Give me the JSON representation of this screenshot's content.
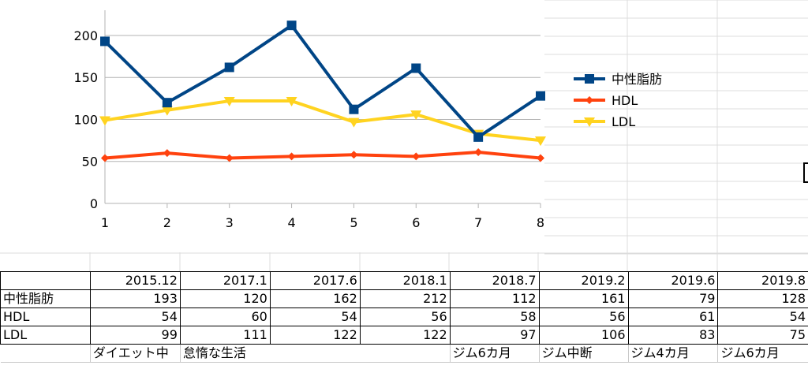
{
  "chart_data": {
    "type": "line",
    "x": [
      1,
      2,
      3,
      4,
      5,
      6,
      7,
      8
    ],
    "ylim": [
      0,
      230
    ],
    "yticks": [
      0,
      50,
      100,
      150,
      200
    ],
    "grid": "horizontal",
    "legend_position": "right",
    "series": [
      {
        "name": "中性脂肪",
        "values": [
          193,
          120,
          162,
          212,
          112,
          161,
          79,
          128
        ],
        "color": "#004586",
        "marker": "square"
      },
      {
        "name": "HDL",
        "values": [
          54,
          60,
          54,
          56,
          58,
          56,
          61,
          54
        ],
        "color": "#ff420e",
        "marker": "diamond"
      },
      {
        "name": "LDL",
        "values": [
          99,
          111,
          122,
          122,
          97,
          106,
          83,
          75
        ],
        "color": "#ffd320",
        "marker": "triangle-down"
      }
    ]
  },
  "table": {
    "headers": [
      "",
      "2015.12",
      "2017.1",
      "2017.6",
      "2018.1",
      "2018.7",
      "2019.2",
      "2019.6",
      "2019.8"
    ],
    "rows": [
      {
        "label": "中性脂肪",
        "values": [
          "193",
          "120",
          "162",
          "212",
          "112",
          "161",
          "79",
          "128"
        ]
      },
      {
        "label": "HDL",
        "values": [
          "54",
          "60",
          "54",
          "56",
          "58",
          "56",
          "61",
          "54"
        ]
      },
      {
        "label": "LDL",
        "values": [
          "99",
          "111",
          "122",
          "122",
          "97",
          "106",
          "83",
          "75"
        ]
      }
    ],
    "notes": [
      "ダイエット中",
      "怠惰な生活",
      "",
      "",
      "ジム6カ月",
      "ジム中断",
      "ジム4カ月",
      "ジム6カ月"
    ]
  }
}
